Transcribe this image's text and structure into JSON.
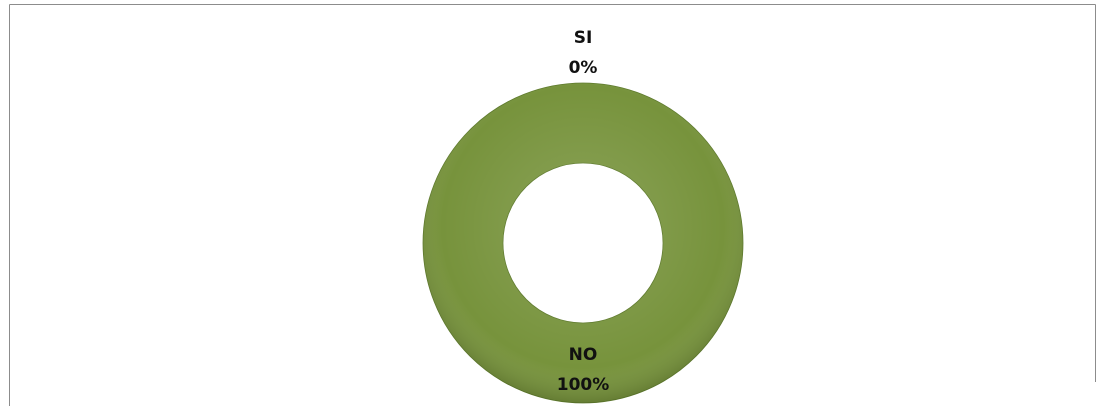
{
  "chart_data": {
    "type": "donut",
    "categories": [
      "SI",
      "NO"
    ],
    "values": [
      0,
      100
    ],
    "value_labels": [
      "0%",
      "100%"
    ],
    "color": "#77933c"
  }
}
